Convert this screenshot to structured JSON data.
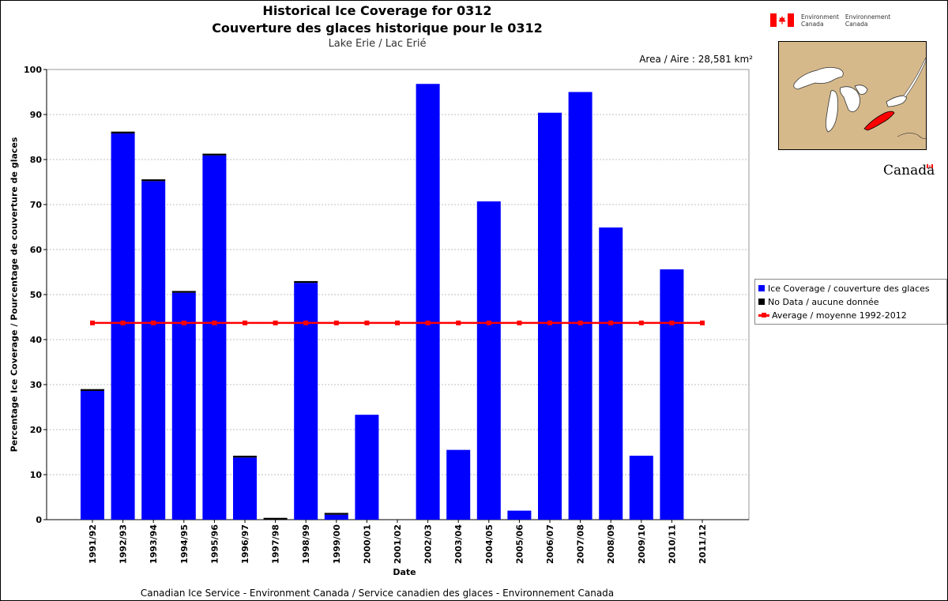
{
  "header": {
    "title_en": "Historical Ice Coverage for 0312",
    "title_fr": "Couverture des glaces historique pour le 0312",
    "subtitle": "Lake Erie / Lac Erié",
    "area": "Area / Aire : 28,581 km²"
  },
  "branding": {
    "env_en_line1": "Environment",
    "env_en_line2": "Canada",
    "env_fr_line1": "Environnement",
    "env_fr_line2": "Canada",
    "wordmark": "Canada",
    "flag_red": "#ff0000",
    "map_land": "#d6b98b",
    "map_highlight": "#ff0000"
  },
  "footer": "Canadian Ice Service - Environment Canada / Service canadien des glaces - Environnement Canada",
  "legend": {
    "ice": "Ice Coverage / couverture des glaces",
    "nodata": "No Data / aucune donnée",
    "average": "Average / moyenne 1992-2012"
  },
  "chart_data": {
    "type": "bar",
    "xlabel": "Date",
    "ylabel": "Percentage Ice Coverage / Pourcentage de couverture de glaces",
    "ylim": [
      0,
      100
    ],
    "yticks": [
      0,
      10,
      20,
      30,
      40,
      50,
      60,
      70,
      80,
      90,
      100
    ],
    "grid": true,
    "legend_position": "right",
    "colors": {
      "ice": "#0000ff",
      "nodata": "#000000",
      "average": "#ff0000"
    },
    "categories": [
      "1991/92",
      "1992/93",
      "1993/94",
      "1994/95",
      "1995/96",
      "1996/97",
      "1997/98",
      "1998/99",
      "1999/00",
      "2000/01",
      "2001/02",
      "2002/03",
      "2003/04",
      "2004/05",
      "2005/06",
      "2006/07",
      "2007/08",
      "2008/09",
      "2009/10",
      "2010/11",
      "2011/12"
    ],
    "series": [
      {
        "name": "Ice Coverage / couverture des glaces",
        "values": [
          28.6,
          85.8,
          75.2,
          50.4,
          80.9,
          13.8,
          0.0,
          52.6,
          1.1,
          23.3,
          0.0,
          96.8,
          15.5,
          70.7,
          2.0,
          90.4,
          95.0,
          64.9,
          14.2,
          55.6,
          0.0
        ]
      },
      {
        "name": "No Data / aucune donnée",
        "values": [
          0.4,
          0.4,
          0.4,
          0.4,
          0.4,
          0.4,
          0.4,
          0.4,
          0.4,
          0.0,
          0.0,
          0.0,
          0.0,
          0.0,
          0.0,
          0.0,
          0.0,
          0.0,
          0.0,
          0.0,
          0.0
        ]
      },
      {
        "name": "Average / moyenne 1992-2012",
        "type": "line",
        "value": 43.7
      }
    ]
  }
}
